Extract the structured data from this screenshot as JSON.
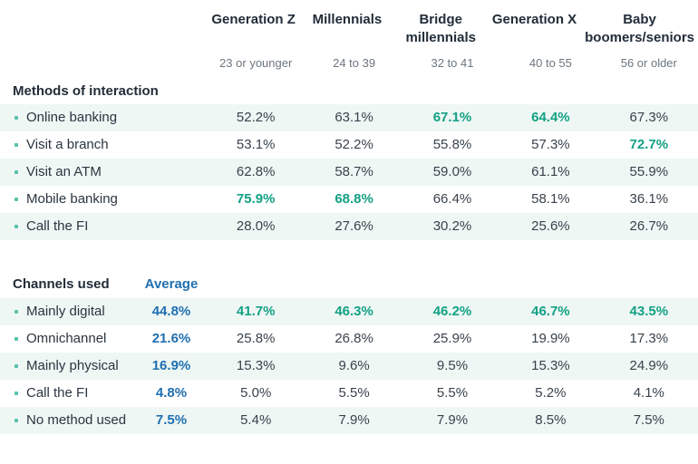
{
  "colors": {
    "highlight_green": "#13a185",
    "average_blue": "#1f6fb0",
    "stripe_background": "#eef7f4",
    "bullet_teal": "#57c2ad",
    "heading_dark": "#222d39",
    "age_gray": "#6d767f"
  },
  "chart_data": {
    "type": "table",
    "columns": [
      {
        "label": "Generation Z",
        "age": "23 or younger"
      },
      {
        "label": "Millennials",
        "age": "24 to 39"
      },
      {
        "label": "Bridge millennials",
        "age": "32 to 41"
      },
      {
        "label": "Generation X",
        "age": "40 to 55"
      },
      {
        "label": "Baby boomers/seniors",
        "age": "56 or older"
      }
    ],
    "sections": [
      {
        "title": "Methods of interaction",
        "average_label": "",
        "rows": [
          {
            "label": "Online banking",
            "average": "",
            "values": [
              "52.2%",
              "63.1%",
              "67.1%",
              "64.4%",
              "67.3%"
            ],
            "highlight": [
              false,
              false,
              true,
              true,
              false
            ]
          },
          {
            "label": "Visit a branch",
            "average": "",
            "values": [
              "53.1%",
              "52.2%",
              "55.8%",
              "57.3%",
              "72.7%"
            ],
            "highlight": [
              false,
              false,
              false,
              false,
              true
            ]
          },
          {
            "label": "Visit an ATM",
            "average": "",
            "values": [
              "62.8%",
              "58.7%",
              "59.0%",
              "61.1%",
              "55.9%"
            ],
            "highlight": [
              false,
              false,
              false,
              false,
              false
            ]
          },
          {
            "label": "Mobile banking",
            "average": "",
            "values": [
              "75.9%",
              "68.8%",
              "66.4%",
              "58.1%",
              "36.1%"
            ],
            "highlight": [
              true,
              true,
              false,
              false,
              false
            ]
          },
          {
            "label": "Call the FI",
            "average": "",
            "values": [
              "28.0%",
              "27.6%",
              "30.2%",
              "25.6%",
              "26.7%"
            ],
            "highlight": [
              false,
              false,
              false,
              false,
              false
            ]
          }
        ]
      },
      {
        "title": "Channels used",
        "average_label": "Average",
        "rows": [
          {
            "label": "Mainly digital",
            "average": "44.8%",
            "values": [
              "41.7%",
              "46.3%",
              "46.2%",
              "46.7%",
              "43.5%"
            ],
            "highlight": [
              true,
              true,
              true,
              true,
              true
            ]
          },
          {
            "label": "Omnichannel",
            "average": "21.6%",
            "values": [
              "25.8%",
              "26.8%",
              "25.9%",
              "19.9%",
              "17.3%"
            ],
            "highlight": [
              false,
              false,
              false,
              false,
              false
            ]
          },
          {
            "label": "Mainly physical",
            "average": "16.9%",
            "values": [
              "15.3%",
              "9.6%",
              "9.5%",
              "15.3%",
              "24.9%"
            ],
            "highlight": [
              false,
              false,
              false,
              false,
              false
            ]
          },
          {
            "label": "Call the FI",
            "average": "4.8%",
            "values": [
              "5.0%",
              "5.5%",
              "5.5%",
              "5.2%",
              "4.1%"
            ],
            "highlight": [
              false,
              false,
              false,
              false,
              false
            ]
          },
          {
            "label": "No method used",
            "average": "7.5%",
            "values": [
              "5.4%",
              "7.9%",
              "7.9%",
              "8.5%",
              "7.5%"
            ],
            "highlight": [
              false,
              false,
              false,
              false,
              false
            ]
          }
        ]
      }
    ]
  }
}
